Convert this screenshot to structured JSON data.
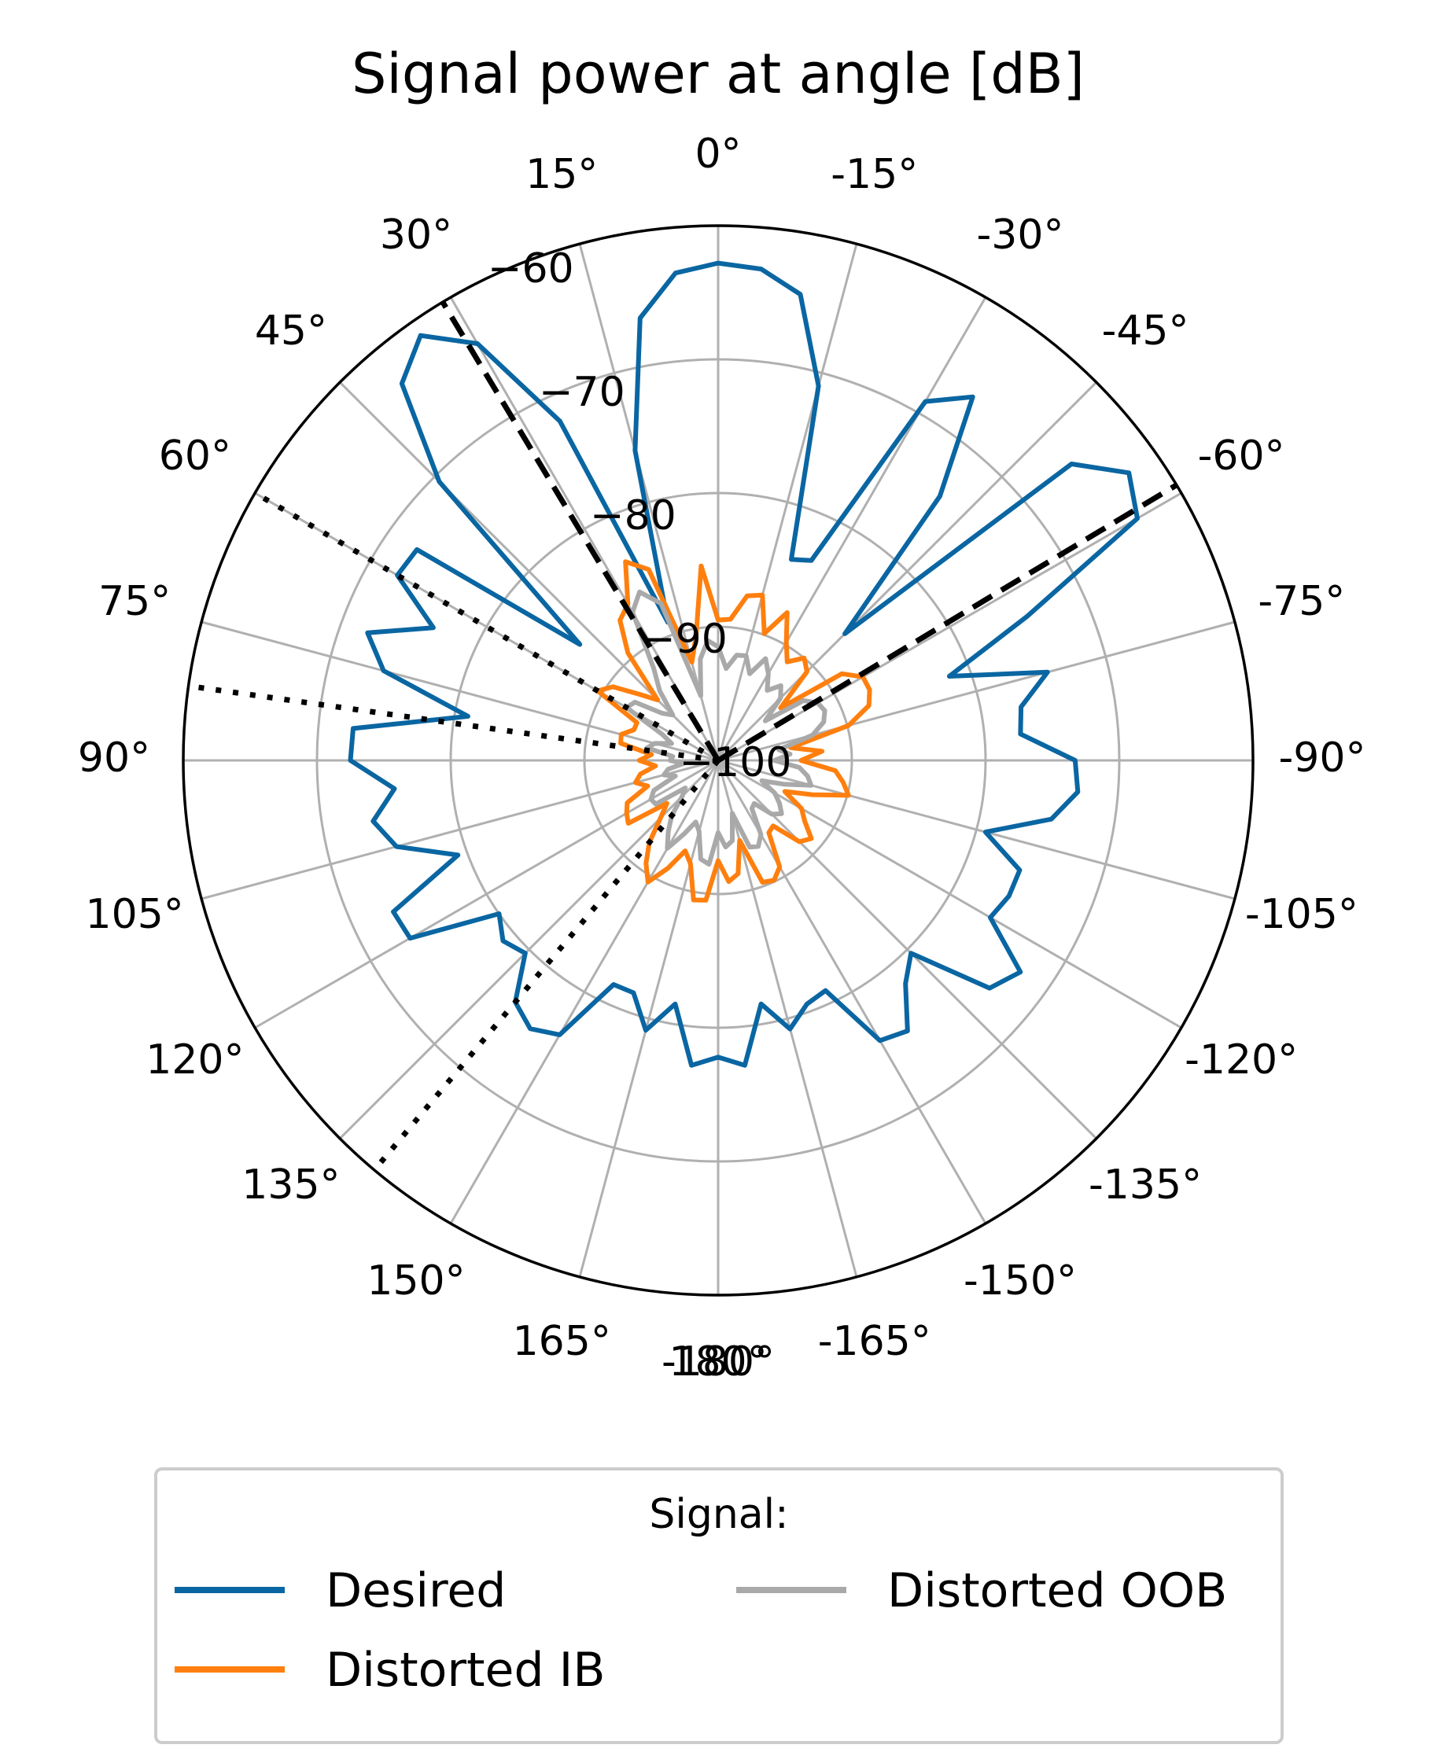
{
  "chart_data": {
    "type": "line",
    "projection": "polar",
    "title": "Signal power at angle [dB]",
    "theta_zero_location": "top",
    "theta_direction": "counter-clockwise",
    "theta_ticks": [
      0,
      15,
      30,
      45,
      60,
      75,
      90,
      105,
      120,
      135,
      150,
      165,
      180,
      -180,
      -165,
      -150,
      -135,
      -120,
      -105,
      -90,
      -75,
      -60,
      -45,
      -30,
      -15
    ],
    "theta_tick_labels": [
      "0°",
      "15°",
      "30°",
      "45°",
      "60°",
      "75°",
      "90°",
      "105°",
      "120°",
      "135°",
      "150°",
      "165°",
      "180°",
      "-180°",
      "-165°",
      "-150°",
      "-135°",
      "-120°",
      "-105°",
      "-90°",
      "-75°",
      "-60°",
      "-45°",
      "-30°",
      "-15°"
    ],
    "r_range": [
      -100,
      -60
    ],
    "r_ticks": [
      -60,
      -70,
      -80,
      -90,
      -100
    ],
    "r_tick_labels": [
      "−60",
      "−70",
      "−80",
      "−90",
      "−100"
    ],
    "grid": true,
    "legend": {
      "title": "Signal:",
      "placement": "bottom",
      "columns": 2,
      "entries": [
        "Desired",
        "Distorted IB",
        "Distorted OOB"
      ]
    },
    "series": [
      {
        "name": "Desired",
        "color": "#0a66a2",
        "theta_deg": [
          0,
          5,
          10,
          15,
          20,
          25,
          30,
          35,
          40,
          45,
          50,
          55,
          60,
          65,
          70,
          75,
          80,
          85,
          90,
          95,
          100,
          105,
          110,
          115,
          120,
          125,
          130,
          135,
          140,
          145,
          150,
          155,
          160,
          165,
          170,
          175,
          180,
          185,
          190,
          195,
          200,
          205,
          210,
          215,
          220,
          225,
          230,
          235,
          240,
          245,
          250,
          255,
          260,
          265,
          270,
          275,
          280,
          285,
          290,
          295,
          300,
          305,
          310,
          315,
          320,
          325,
          330,
          335,
          340,
          345,
          350,
          355
        ],
        "r_db": [
          -62.8,
          -63.4,
          -66.4,
          -76,
          -89,
          -72,
          -64,
          -61.2,
          -63.2,
          -70.5,
          -86.5,
          -72.5,
          -72.3,
          -76.5,
          -72.1,
          -74.1,
          -81,
          -72.6,
          -72.5,
          -75.7,
          -73.8,
          -75.1,
          -79.3,
          -73.2,
          -73.4,
          -80,
          -79,
          -79.6,
          -76.4,
          -75.5,
          -76.3,
          -81.5,
          -81.5,
          -79.1,
          -81.5,
          -77.1,
          -77.8,
          -77.1,
          -81.5,
          -79.2,
          -80.6,
          -81,
          -75.8,
          -75.3,
          -78.2,
          -79.6,
          -73.5,
          -72.4,
          -76.5,
          -76,
          -76,
          -79.3,
          -74.7,
          -73,
          -73.3,
          -77.3,
          -77,
          -74.5,
          -81.6,
          -74.5,
          -63.8,
          -62.5,
          -65.5,
          -86.6,
          -74.2,
          -66.8,
          -69,
          -83.5,
          -84,
          -71,
          -64.6,
          -63.1
        ]
      },
      {
        "name": "Distorted IB",
        "color": "#ff7f0e",
        "theta_deg": [
          0,
          5,
          10,
          15,
          20,
          25,
          30,
          35,
          40,
          45,
          50,
          55,
          60,
          65,
          70,
          75,
          80,
          85,
          90,
          95,
          100,
          105,
          110,
          115,
          120,
          125,
          130,
          135,
          140,
          145,
          150,
          155,
          160,
          165,
          170,
          175,
          180,
          185,
          190,
          195,
          200,
          205,
          210,
          215,
          220,
          225,
          230,
          235,
          240,
          245,
          250,
          255,
          260,
          265,
          270,
          275,
          280,
          285,
          290,
          295,
          300,
          305,
          310,
          315,
          320,
          325,
          330,
          335,
          340,
          345,
          350,
          355
        ],
        "r_db": [
          -89.5,
          -85.4,
          -90.5,
          -92.4,
          -84.8,
          -83.6,
          -86.5,
          -87.2,
          -89.5,
          -93.6,
          -92.3,
          -90.4,
          -89.6,
          -93.3,
          -93.3,
          -92.5,
          -92.6,
          -95,
          -94.1,
          -95.3,
          -94.1,
          -93.6,
          -94.4,
          -92.5,
          -92.1,
          -91.8,
          -95,
          -93.9,
          -92,
          -90.6,
          -89.5,
          -91.1,
          -92.8,
          -92,
          -89.4,
          -89.5,
          -92.5,
          -90.9,
          -91.4,
          -93.8,
          -90.3,
          -90.1,
          -90.8,
          -93.4,
          -93.6,
          -91.4,
          -90.9,
          -92.1,
          -92.8,
          -94.5,
          -92.5,
          -89.9,
          -90.5,
          -91.2,
          -93.8,
          -92.2,
          -94.5,
          -89.9,
          -88,
          -87.5,
          -87.5,
          -88.7,
          -93.9,
          -90.6,
          -90,
          -91,
          -89.8,
          -87.8,
          -89.9,
          -87.2,
          -87.5,
          -89.4
        ]
      },
      {
        "name": "Distorted OOB",
        "color": "#a9a9a9",
        "theta_deg": [
          0,
          5,
          10,
          15,
          20,
          25,
          30,
          35,
          40,
          45,
          50,
          55,
          60,
          65,
          70,
          75,
          80,
          85,
          90,
          95,
          100,
          105,
          110,
          115,
          120,
          125,
          130,
          135,
          140,
          145,
          150,
          155,
          160,
          165,
          170,
          175,
          180,
          185,
          190,
          195,
          200,
          205,
          210,
          215,
          220,
          225,
          230,
          235,
          240,
          245,
          250,
          255,
          260,
          265,
          270,
          275,
          280,
          285,
          290,
          295,
          300,
          305,
          310,
          315,
          320,
          325,
          330,
          335,
          340,
          345,
          350,
          355
        ],
        "r_db": [
          -91.5,
          -91,
          -92.3,
          -95,
          -87.5,
          -86.1,
          -87.2,
          -91.6,
          -93.2,
          -95.2,
          -94.5,
          -92.4,
          -92.1,
          -95.4,
          -96.3,
          -95.1,
          -94.6,
          -96.6,
          -96.4,
          -97.4,
          -96.2,
          -95.8,
          -96.6,
          -94.7,
          -94.2,
          -94.3,
          -96.8,
          -96.2,
          -94.6,
          -93.5,
          -92.4,
          -93.9,
          -95.1,
          -94.5,
          -92.5,
          -92.2,
          -94.6,
          -93.5,
          -93.9,
          -95.9,
          -93.1,
          -92.9,
          -93.6,
          -95.6,
          -95.8,
          -94.3,
          -93.8,
          -94.4,
          -95.1,
          -96.4,
          -94.8,
          -92.8,
          -93.2,
          -93.9,
          -95.8,
          -94.6,
          -95.4,
          -92.7,
          -91.6,
          -91.2,
          -91.4,
          -92.2,
          -95.4,
          -93.4,
          -92.7,
          -93.6,
          -92.5,
          -91.6,
          -93.1,
          -91.9,
          -92,
          -93.1
        ]
      }
    ],
    "reference_lines": [
      {
        "style": "dashed",
        "color": "#000000",
        "theta_deg": [
          -59,
          31
        ]
      },
      {
        "style": "dotted",
        "color": "#000000",
        "theta_deg": [
          60,
          82,
          140
        ]
      }
    ]
  }
}
